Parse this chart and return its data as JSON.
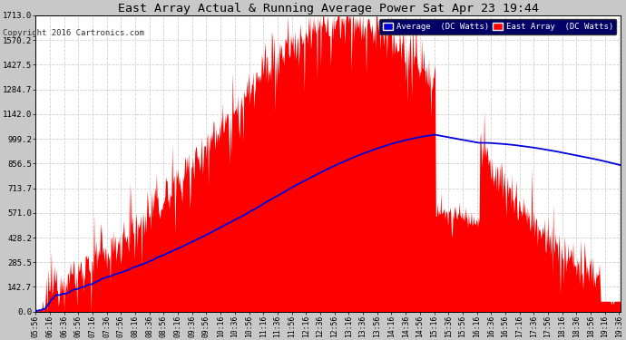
{
  "title": "East Array Actual & Running Average Power Sat Apr 23 19:44",
  "copyright": "Copyright 2016 Cartronics.com",
  "legend_avg": "Average  (DC Watts)",
  "legend_east": "East Array  (DC Watts)",
  "yticks": [
    0.0,
    142.7,
    285.5,
    428.2,
    571.0,
    713.7,
    856.5,
    999.2,
    1142.0,
    1284.7,
    1427.5,
    1570.2,
    1713.0
  ],
  "ymax": 1713.0,
  "background_color": "#c8c8c8",
  "plot_background": "#ffffff",
  "bar_color": "#ff0000",
  "avg_color": "#0000dd",
  "title_color": "#000000",
  "grid_color": "#aaaaaa",
  "start_hour": 5.933,
  "end_hour": 19.633
}
